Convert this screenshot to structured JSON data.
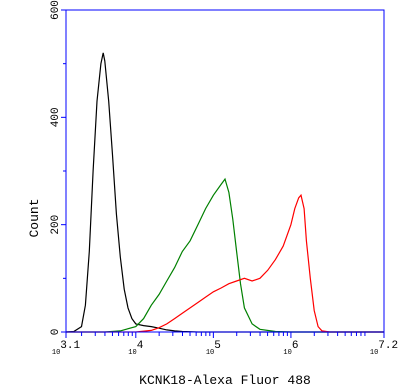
{
  "chart_data": {
    "type": "line",
    "title": "",
    "xlabel": "KCNK18-Alexa Fluor 488",
    "ylabel": "Count",
    "x_scale": "log10",
    "xlim": [
      3.1,
      7.2
    ],
    "ylim": [
      0,
      600
    ],
    "x_tick_labels": [
      {
        "exp": "3.1",
        "base": "10"
      },
      {
        "exp": "4",
        "base": "10"
      },
      {
        "exp": "5",
        "base": "10"
      },
      {
        "exp": "6",
        "base": "10"
      },
      {
        "exp": "7.2",
        "base": "10"
      }
    ],
    "x_ticks_log10": [
      3.1,
      4,
      5,
      6,
      7.2
    ],
    "y_ticks": [
      0,
      200,
      400,
      600
    ],
    "y_tick_labels": [
      "0",
      "200",
      "400",
      "600"
    ],
    "grid": false,
    "legend": "none",
    "colors": {
      "axes": "#0000ff",
      "text": "#000000"
    },
    "series": [
      {
        "color": "#000000",
        "points": [
          [
            3.1,
            0
          ],
          [
            3.2,
            1
          ],
          [
            3.3,
            10
          ],
          [
            3.35,
            50
          ],
          [
            3.4,
            150
          ],
          [
            3.45,
            300
          ],
          [
            3.5,
            430
          ],
          [
            3.55,
            500
          ],
          [
            3.58,
            520
          ],
          [
            3.6,
            505
          ],
          [
            3.65,
            430
          ],
          [
            3.7,
            330
          ],
          [
            3.75,
            220
          ],
          [
            3.8,
            140
          ],
          [
            3.85,
            80
          ],
          [
            3.9,
            45
          ],
          [
            3.95,
            25
          ],
          [
            4.0,
            15
          ],
          [
            4.1,
            12
          ],
          [
            4.2,
            10
          ],
          [
            4.3,
            7
          ],
          [
            4.4,
            4
          ],
          [
            4.5,
            2
          ],
          [
            4.6,
            1
          ],
          [
            4.8,
            0
          ],
          [
            7.2,
            0
          ]
        ]
      },
      {
        "color": "#008000",
        "points": [
          [
            3.1,
            0
          ],
          [
            3.6,
            0
          ],
          [
            3.8,
            2
          ],
          [
            4.0,
            10
          ],
          [
            4.1,
            25
          ],
          [
            4.2,
            50
          ],
          [
            4.3,
            70
          ],
          [
            4.4,
            95
          ],
          [
            4.5,
            120
          ],
          [
            4.6,
            150
          ],
          [
            4.7,
            170
          ],
          [
            4.8,
            200
          ],
          [
            4.9,
            230
          ],
          [
            5.0,
            255
          ],
          [
            5.1,
            275
          ],
          [
            5.15,
            285
          ],
          [
            5.2,
            260
          ],
          [
            5.25,
            210
          ],
          [
            5.3,
            150
          ],
          [
            5.35,
            90
          ],
          [
            5.4,
            45
          ],
          [
            5.5,
            15
          ],
          [
            5.6,
            5
          ],
          [
            5.8,
            1
          ],
          [
            6.0,
            0
          ],
          [
            7.2,
            0
          ]
        ]
      },
      {
        "color": "#ff0000",
        "points": [
          [
            3.1,
            0
          ],
          [
            4.0,
            0
          ],
          [
            4.2,
            3
          ],
          [
            4.3,
            8
          ],
          [
            4.4,
            15
          ],
          [
            4.5,
            25
          ],
          [
            4.6,
            35
          ],
          [
            4.7,
            45
          ],
          [
            4.8,
            55
          ],
          [
            4.9,
            65
          ],
          [
            5.0,
            75
          ],
          [
            5.1,
            82
          ],
          [
            5.2,
            90
          ],
          [
            5.3,
            95
          ],
          [
            5.4,
            100
          ],
          [
            5.5,
            95
          ],
          [
            5.6,
            100
          ],
          [
            5.7,
            115
          ],
          [
            5.8,
            135
          ],
          [
            5.9,
            160
          ],
          [
            6.0,
            200
          ],
          [
            6.05,
            230
          ],
          [
            6.1,
            250
          ],
          [
            6.13,
            255
          ],
          [
            6.17,
            230
          ],
          [
            6.2,
            170
          ],
          [
            6.25,
            100
          ],
          [
            6.3,
            40
          ],
          [
            6.35,
            10
          ],
          [
            6.4,
            2
          ],
          [
            6.5,
            0
          ],
          [
            7.2,
            0
          ]
        ]
      }
    ]
  }
}
